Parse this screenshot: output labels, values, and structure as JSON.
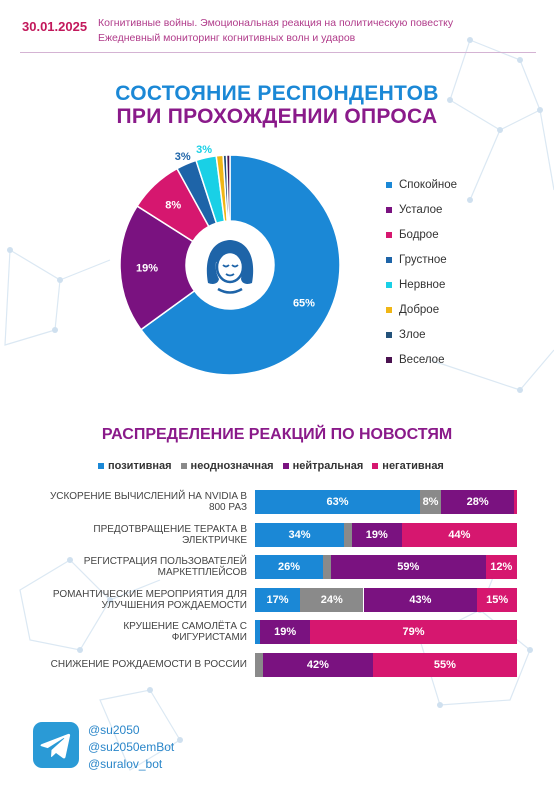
{
  "header": {
    "date": "30.01.2025",
    "line1": "Когнитивные войны. Эмоциональная реакция на политическую повестку",
    "line2": "Ежедневный мониторинг когнитивных волн и ударов"
  },
  "colors": {
    "blue": "#1b88d6",
    "purple": "#7a1280",
    "pink": "#d6176f",
    "gray": "#8a8a8a",
    "dark_blue": "#1e64a8",
    "cyan": "#19d0e6",
    "yellow": "#f0b616",
    "navy": "#23527a",
    "dark_purple": "#4a1250"
  },
  "icons": {
    "center": "face-icon",
    "footer": "telegram-icon"
  },
  "chart_data": [
    {
      "type": "pie",
      "title": "СОСТОЯНИЕ РЕСПОНДЕНТОВ ПРИ ПРОХОЖДЕНИИ ОПРОСА",
      "title_line1": "СОСТОЯНИЕ РЕСПОНДЕНТОВ",
      "title_line2": "ПРИ ПРОХОЖДЕНИИ ОПРОСА",
      "legend_position": "right",
      "slices": [
        {
          "name": "Спокойное",
          "value": 65,
          "label": "65%",
          "color": "#1b88d6"
        },
        {
          "name": "Усталое",
          "value": 19,
          "label": "19%",
          "color": "#7a1280"
        },
        {
          "name": "Бодрое",
          "value": 8,
          "label": "8%",
          "color": "#d6176f"
        },
        {
          "name": "Грустное",
          "value": 3,
          "label": "3%",
          "color": "#1e64a8"
        },
        {
          "name": "Нервное",
          "value": 3,
          "label": "3%",
          "color": "#19d0e6"
        },
        {
          "name": "Доброе",
          "value": 1,
          "label": "",
          "color": "#f0b616"
        },
        {
          "name": "Злое",
          "value": 0.5,
          "label": "",
          "color": "#23527a"
        },
        {
          "name": "Веселое",
          "value": 0.5,
          "label": "",
          "color": "#4a1250"
        }
      ]
    },
    {
      "type": "bar",
      "orientation": "horizontal-stacked",
      "title": "РАСПРЕДЕЛЕНИЕ РЕАКЦИЙ ПО НОВОСТЯМ",
      "legend_position": "top",
      "series": [
        {
          "name": "позитивная",
          "color": "#1b88d6"
        },
        {
          "name": "неоднозначная",
          "color": "#8a8a8a"
        },
        {
          "name": "нейтральная",
          "color": "#7a1280"
        },
        {
          "name": "негативная",
          "color": "#d6176f"
        }
      ],
      "rows": [
        {
          "label": "Ускорение вычислений на Nvidia в 800 раз",
          "label_lines": [
            "Ускорение вычислений на Nvidia в",
            "800 раз"
          ],
          "values": [
            63,
            8,
            28,
            1
          ],
          "labels": [
            "63%",
            "8%",
            "28%",
            ""
          ]
        },
        {
          "label": "Предотвращение теракта в Электричке",
          "label_lines": [
            "Предотвращение теракта в",
            "Электричке"
          ],
          "values": [
            34,
            3,
            19,
            44
          ],
          "labels": [
            "34%",
            "",
            "19%",
            "44%"
          ]
        },
        {
          "label": "Регистрация пользователей маркетплейсов",
          "label_lines": [
            "Регистрация пользователей",
            "маркетплейсов"
          ],
          "values": [
            26,
            3,
            59,
            12
          ],
          "labels": [
            "26%",
            "",
            "59%",
            "12%"
          ]
        },
        {
          "label": "Романтические мероприятия для улучшения рождаемости",
          "label_lines": [
            "Романтические мероприятия для",
            "улучшения рождаемости"
          ],
          "values": [
            17,
            24,
            43,
            15
          ],
          "labels": [
            "17%",
            "24%",
            "43%",
            "15%"
          ]
        },
        {
          "label": "Крушение самолёта с фигуристами",
          "label_lines": [
            "Крушение самолёта с",
            "фигуристами"
          ],
          "values": [
            2,
            0,
            19,
            79
          ],
          "labels": [
            "",
            "",
            "19%",
            "79%"
          ]
        },
        {
          "label": "Снижение рождаемости в России",
          "label_lines": [
            "Снижение рождаемости в России"
          ],
          "values": [
            0,
            3,
            42,
            55
          ],
          "labels": [
            "",
            "",
            "42%",
            "55%"
          ]
        }
      ]
    }
  ],
  "footer": {
    "handles": [
      "@su2050",
      "@su2050emBot",
      "@suralov_bot"
    ]
  }
}
